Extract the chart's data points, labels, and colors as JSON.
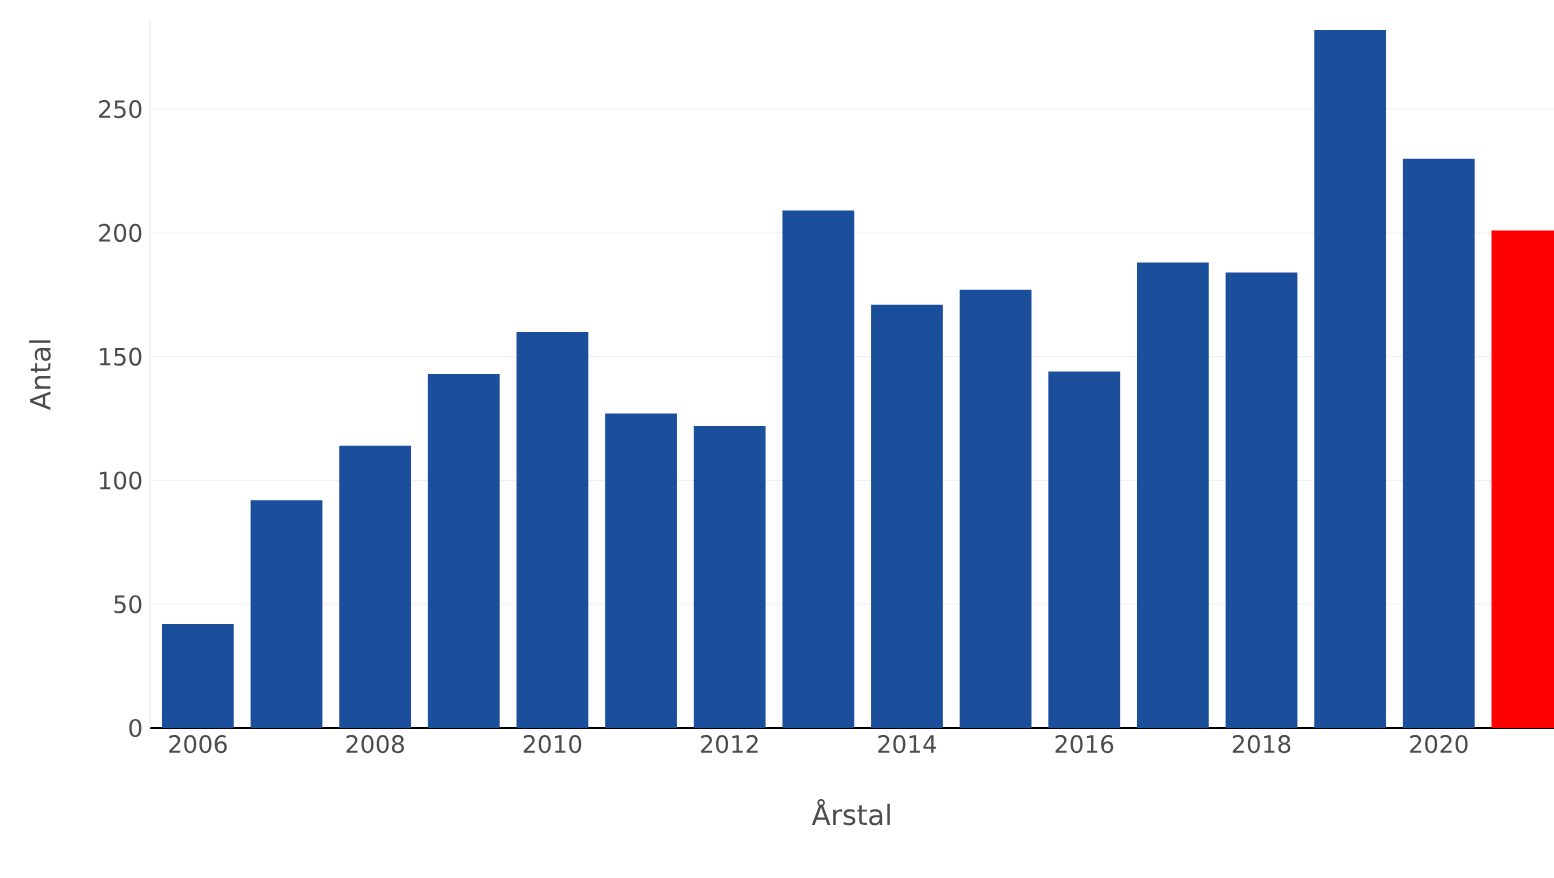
{
  "chart_data": {
    "type": "bar",
    "xlabel": "Årstal",
    "ylabel": "Antal",
    "x": [
      2006,
      2007,
      2008,
      2009,
      2010,
      2011,
      2012,
      2013,
      2014,
      2015,
      2016,
      2017,
      2018,
      2019,
      2020,
      2021
    ],
    "values": [
      42,
      92,
      114,
      143,
      160,
      127,
      122,
      209,
      171,
      177,
      144,
      188,
      184,
      282,
      230,
      201
    ],
    "colors": [
      "#1b4f9b",
      "#1b4f9b",
      "#1b4f9b",
      "#1b4f9b",
      "#1b4f9b",
      "#1b4f9b",
      "#1b4f9b",
      "#1b4f9b",
      "#1b4f9b",
      "#1b4f9b",
      "#1b4f9b",
      "#1b4f9b",
      "#1b4f9b",
      "#1b4f9b",
      "#1b4f9b",
      "#ff0000"
    ],
    "xlim": [
      2005.46,
      2021.3
    ],
    "ylim": [
      0,
      286
    ],
    "xticks": [
      2006,
      2008,
      2010,
      2012,
      2014,
      2016,
      2018,
      2020
    ],
    "yticks": [
      0,
      50,
      100,
      150,
      200,
      250
    ],
    "grid": "y"
  }
}
